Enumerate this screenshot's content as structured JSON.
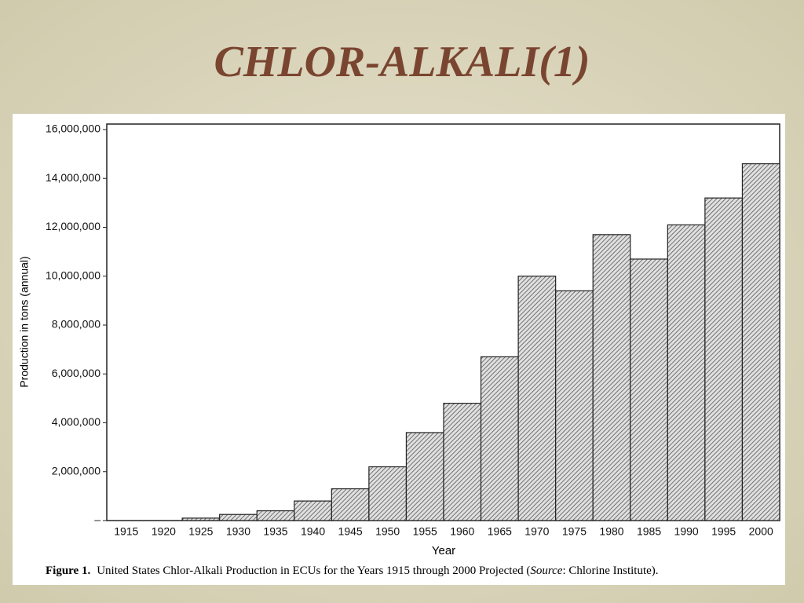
{
  "slide_title": "CHLOR-ALKALI(1)",
  "chart_data": {
    "type": "bar",
    "categories": [
      "1915",
      "1920",
      "1925",
      "1930",
      "1935",
      "1940",
      "1945",
      "1950",
      "1955",
      "1960",
      "1965",
      "1970",
      "1975",
      "1980",
      "1985",
      "1990",
      "1995",
      "2000"
    ],
    "values": [
      null,
      null,
      100000,
      250000,
      400000,
      800000,
      1300000,
      2200000,
      3600000,
      4800000,
      6700000,
      10000000,
      9400000,
      11700000,
      10700000,
      12100000,
      13200000,
      14600000
    ],
    "color": "#b8b8b8",
    "ylim": [
      0,
      16000000
    ],
    "yticks": [
      {
        "value": 0,
        "label": "–"
      },
      {
        "value": 2000000,
        "label": "2,000,000"
      },
      {
        "value": 4000000,
        "label": "4,000,000"
      },
      {
        "value": 6000000,
        "label": "6,000,000"
      },
      {
        "value": 8000000,
        "label": "8,000,000"
      },
      {
        "value": 10000000,
        "label": "10,000,000"
      },
      {
        "value": 12000000,
        "label": "12,000,000"
      },
      {
        "value": 14000000,
        "label": "14,000,000"
      },
      {
        "value": 16000000,
        "label": "16,000,000"
      }
    ],
    "ylabel": "Production in tons (annual)",
    "xlabel": "Year",
    "caption_label": "Figure 1.",
    "caption": [
      "United States Chlor-Alkali Production in ECUs for the Years 1915 through 2000 Projected (",
      "Source",
      ": Chlorine Institute)."
    ]
  }
}
